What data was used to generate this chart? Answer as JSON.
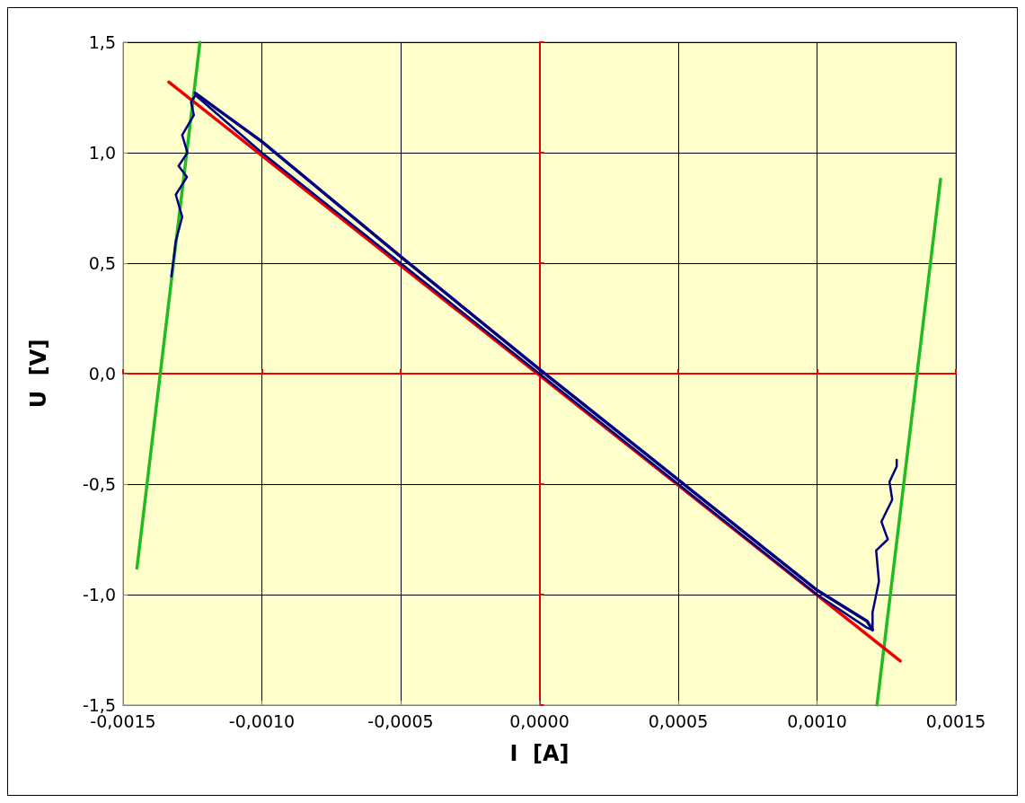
{
  "chart_data": {
    "type": "line",
    "xlabel": "I  [A]",
    "ylabel": "U  [V]",
    "xlim": [
      -0.0015,
      0.0015
    ],
    "xticks": [
      {
        "value": -0.0015,
        "label": "-0,0015"
      },
      {
        "value": -0.001,
        "label": "-0,0010"
      },
      {
        "value": -0.0005,
        "label": "-0,0005"
      },
      {
        "value": 0,
        "label": "0,0000"
      },
      {
        "value": 0.0005,
        "label": "0,0005"
      },
      {
        "value": 0.001,
        "label": "0,0010"
      },
      {
        "value": 0.0015,
        "label": "0,0015"
      }
    ],
    "ylim": [
      -1.5,
      1.5
    ],
    "yticks": [
      {
        "value": -1.5,
        "label": "-1,5"
      },
      {
        "value": -1,
        "label": "-1,0"
      },
      {
        "value": -0.5,
        "label": "-0,5"
      },
      {
        "value": 0,
        "label": "0,0"
      },
      {
        "value": 0.5,
        "label": "0,5"
      },
      {
        "value": 1,
        "label": "1,0"
      },
      {
        "value": 1.5,
        "label": "1,5"
      }
    ],
    "grid": true,
    "marker": "none",
    "line_style": "solid",
    "series": [
      {
        "color": "#000080",
        "x": [
          -0.001326,
          -0.00131,
          -0.001287,
          -0.00131,
          -0.00127,
          -0.0013,
          -0.001268,
          -0.001287,
          -0.001245,
          -0.001255,
          -0.001239,
          -0.001,
          -0.0005,
          0,
          0.0005,
          0.001,
          0.00118,
          0.0012,
          0.0012,
          0.001223,
          0.001213,
          0.001255,
          0.001232,
          0.001271,
          0.001261,
          0.001287,
          0.001287
        ],
        "values": [
          0.44,
          0.6,
          0.71,
          0.81,
          0.89,
          0.94,
          1.0,
          1.08,
          1.17,
          1.23,
          1.26,
          1.0,
          0.5,
          0,
          -0.5,
          -1.0,
          -1.15,
          -1.16,
          -1.08,
          -0.94,
          -0.8,
          -0.75,
          -0.67,
          -0.57,
          -0.49,
          -0.42,
          -0.39
        ]
      },
      {
        "color": "#000080",
        "x": [
          -0.00124,
          -0.001,
          -0.0005,
          0,
          0.0005,
          0.001,
          0.00118,
          0.0012
        ],
        "values": [
          1.27,
          1.05,
          0.53,
          0.02,
          -0.48,
          -0.98,
          -1.12,
          -1.16
        ]
      },
      {
        "color": "#ee0000",
        "x": [
          -0.001335,
          0.0013
        ],
        "values": [
          1.32,
          -1.3
        ]
      },
      {
        "color": "#22bb22",
        "x": [
          -0.00145,
          -0.001223
        ],
        "values": [
          -0.88,
          1.5
        ]
      },
      {
        "color": "#22bb22",
        "x": [
          0.001216,
          0.001445
        ],
        "values": [
          -1.5,
          0.88
        ]
      }
    ]
  }
}
